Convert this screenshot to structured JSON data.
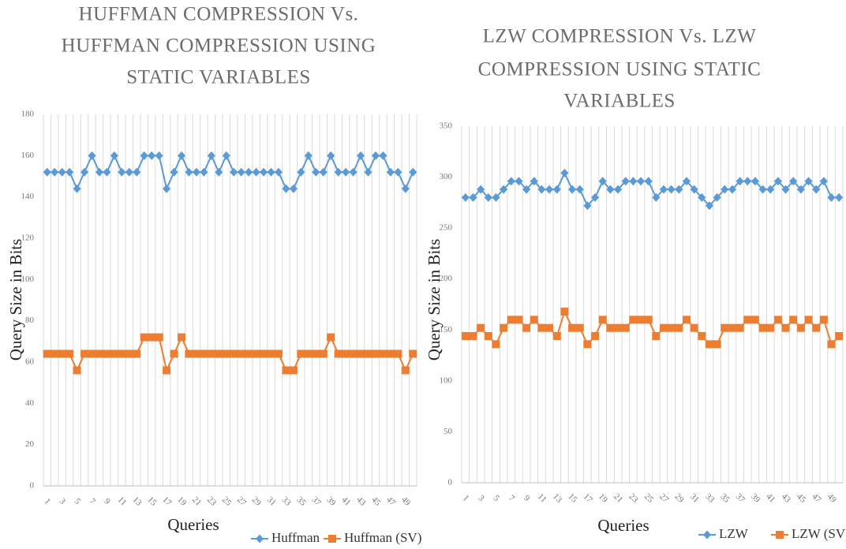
{
  "chart_data": [
    {
      "type": "line",
      "title": [
        "HUFFMAN COMPRESSION  Vs.",
        "HUFFMAN COMPRESSION USING",
        "STATIC VARIABLES"
      ],
      "x_label": "Queries",
      "y_label": "Query Size in Bits",
      "categories": [
        "1",
        null,
        "3",
        null,
        "5",
        null,
        "7",
        null,
        "9",
        null,
        "11",
        null,
        "13",
        null,
        "15",
        null,
        "17",
        null,
        "19",
        null,
        "21",
        null,
        "23",
        null,
        "25",
        null,
        "27",
        null,
        "29",
        null,
        "31",
        null,
        "33",
        null,
        "35",
        null,
        "37",
        null,
        "39",
        null,
        "41",
        null,
        "43",
        null,
        "45",
        null,
        "47",
        null,
        "49",
        null
      ],
      "ylim": [
        0,
        180
      ],
      "yticks": [
        0,
        20,
        40,
        60,
        80,
        100,
        120,
        140,
        160,
        180
      ],
      "grid": true,
      "legend": "bottom-right",
      "series": [
        {
          "name": "Huffman",
          "color": "#5b9bd5",
          "marker": "diamond",
          "values": [
            152,
            152,
            152,
            152,
            144,
            152,
            160,
            152,
            152,
            160,
            152,
            152,
            152,
            160,
            160,
            160,
            144,
            152,
            160,
            152,
            152,
            152,
            160,
            152,
            160,
            152,
            152,
            152,
            152,
            152,
            152,
            152,
            144,
            144,
            152,
            160,
            152,
            152,
            160,
            152,
            152,
            152,
            160,
            152,
            160,
            160,
            152,
            152,
            144,
            152
          ]
        },
        {
          "name": "Huffman (SV)",
          "color": "#ed7d31",
          "marker": "square",
          "values": [
            64,
            64,
            64,
            64,
            56,
            64,
            64,
            64,
            64,
            64,
            64,
            64,
            64,
            72,
            72,
            72,
            56,
            64,
            72,
            64,
            64,
            64,
            64,
            64,
            64,
            64,
            64,
            64,
            64,
            64,
            64,
            64,
            56,
            56,
            64,
            64,
            64,
            64,
            72,
            64,
            64,
            64,
            64,
            64,
            64,
            64,
            64,
            64,
            56,
            64
          ]
        }
      ]
    },
    {
      "type": "line",
      "title": [
        "LZW COMPRESSION  Vs. LZW",
        "COMPRESSION USING STATIC",
        "VARIABLES"
      ],
      "x_label": "Queries",
      "y_label": "Query Size in Bits",
      "categories": [
        "1",
        null,
        "3",
        null,
        "5",
        null,
        "7",
        null,
        "9",
        null,
        "11",
        null,
        "13",
        null,
        "15",
        null,
        "17",
        null,
        "19",
        null,
        "21",
        null,
        "23",
        null,
        "25",
        null,
        "27",
        null,
        "29",
        null,
        "31",
        null,
        "33",
        null,
        "35",
        null,
        "37",
        null,
        "39",
        null,
        "41",
        null,
        "43",
        null,
        "45",
        null,
        "47",
        null,
        "49",
        null
      ],
      "ylim": [
        0,
        350
      ],
      "yticks": [
        0,
        50,
        100,
        150,
        200,
        250,
        300,
        350
      ],
      "grid": true,
      "legend": "bottom-right",
      "series": [
        {
          "name": "LZW",
          "color": "#5b9bd5",
          "marker": "diamond",
          "values": [
            280,
            280,
            288,
            280,
            280,
            288,
            296,
            296,
            288,
            296,
            288,
            288,
            288,
            304,
            288,
            288,
            272,
            280,
            296,
            288,
            288,
            296,
            296,
            296,
            296,
            280,
            288,
            288,
            288,
            296,
            288,
            280,
            272,
            280,
            288,
            288,
            296,
            296,
            296,
            288,
            288,
            296,
            288,
            296,
            288,
            296,
            288,
            296,
            280,
            280
          ]
        },
        {
          "name": "LZW (SV)",
          "color": "#ed7d31",
          "marker": "square",
          "values": [
            144,
            144,
            152,
            144,
            136,
            152,
            160,
            160,
            152,
            160,
            152,
            152,
            144,
            168,
            152,
            152,
            136,
            144,
            160,
            152,
            152,
            152,
            160,
            160,
            160,
            144,
            152,
            152,
            152,
            160,
            152,
            144,
            136,
            136,
            152,
            152,
            152,
            160,
            160,
            152,
            152,
            160,
            152,
            160,
            152,
            160,
            152,
            160,
            136,
            144
          ]
        }
      ]
    }
  ]
}
